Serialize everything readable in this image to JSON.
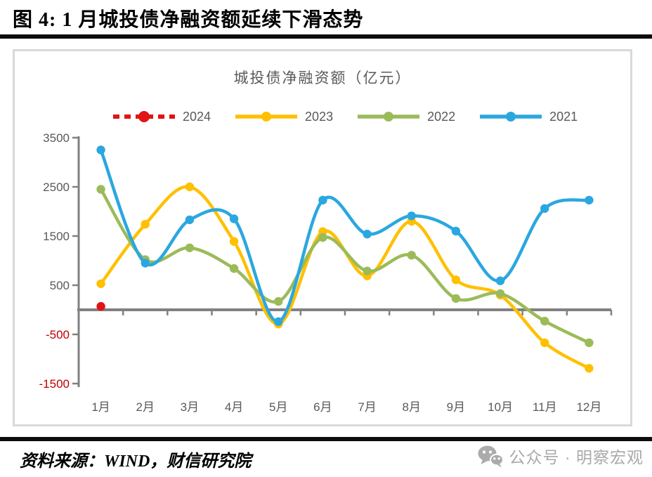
{
  "header": {
    "title": "图 4: 1 月城投债净融资额延续下滑态势"
  },
  "chart_data": {
    "type": "line",
    "title": "城投债净融资额（亿元）",
    "categories": [
      "1月",
      "2月",
      "3月",
      "4月",
      "5月",
      "6月",
      "7月",
      "8月",
      "9月",
      "10月",
      "11月",
      "12月"
    ],
    "series": [
      {
        "name": "2024",
        "color": "#E01414",
        "style": "dashed",
        "values": [
          70,
          null,
          null,
          null,
          null,
          null,
          null,
          null,
          null,
          null,
          null,
          null
        ]
      },
      {
        "name": "2023",
        "color": "#FFC000",
        "style": "solid",
        "values": [
          530,
          1740,
          2500,
          1390,
          -290,
          1590,
          690,
          1800,
          610,
          300,
          -670,
          -1190
        ]
      },
      {
        "name": "2022",
        "color": "#9BBB59",
        "style": "solid",
        "values": [
          2450,
          1020,
          1260,
          840,
          170,
          1470,
          790,
          1110,
          230,
          330,
          -230,
          -670
        ]
      },
      {
        "name": "2021",
        "color": "#2BA7DF",
        "style": "solid",
        "values": [
          3250,
          950,
          1830,
          1850,
          -240,
          2230,
          1540,
          1910,
          1600,
          590,
          2060,
          2230
        ]
      }
    ],
    "y_ticks": [
      3500,
      2500,
      1500,
      500,
      -500,
      -1500
    ],
    "ylim": [
      -1500,
      3500
    ],
    "grid": false,
    "legend_position": "top",
    "xlabel": "",
    "ylabel": "",
    "colors": {
      "axis": "#808080",
      "label": "#595959",
      "negative_label": "#C00000",
      "panel_border": "#D9D9D9"
    }
  },
  "footer": {
    "source": "资料来源：WIND，财信研究院",
    "wechat": "公众号 · 明察宏观"
  }
}
